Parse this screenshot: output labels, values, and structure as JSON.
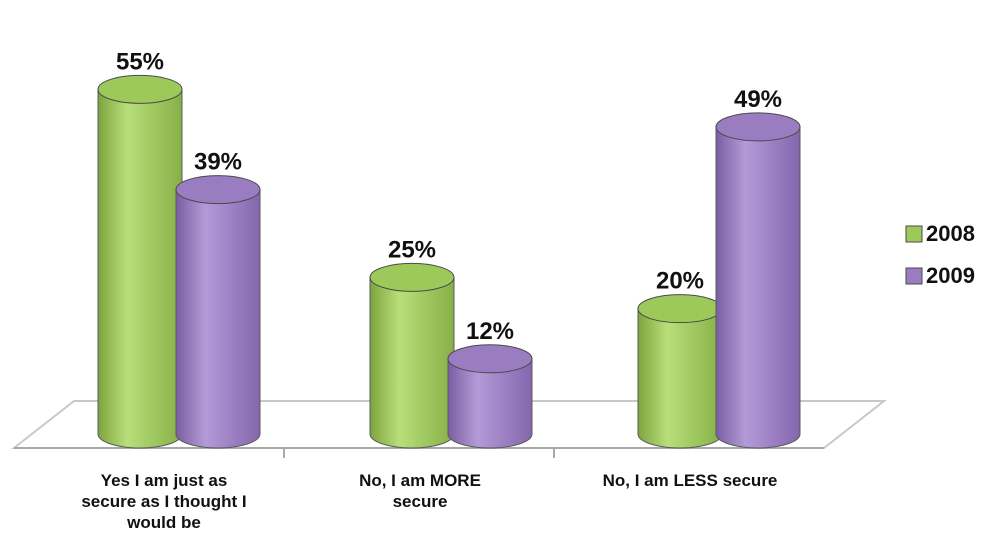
{
  "chart_data": {
    "type": "bar",
    "categories": [
      [
        "Yes I am just as",
        "secure as I thought I",
        "would be"
      ],
      [
        "No, I am MORE",
        "secure"
      ],
      [
        "No, I am LESS secure"
      ]
    ],
    "series": [
      {
        "name": "2008",
        "color": "#9cc95a",
        "values": [
          55,
          25,
          20
        ]
      },
      {
        "name": "2009",
        "color": "#9a7cc0",
        "values": [
          39,
          12,
          49
        ]
      }
    ],
    "data_labels": [
      [
        "55%",
        "25%",
        "20%"
      ],
      [
        "39%",
        "12%",
        "49%"
      ]
    ],
    "ylim": [
      0,
      60
    ],
    "grid": false,
    "legend_position": "right",
    "style": "3d-cylinder"
  }
}
